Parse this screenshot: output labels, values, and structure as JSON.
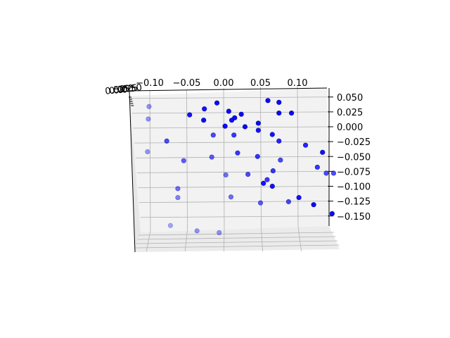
{
  "chart_data": {
    "type": "scatter",
    "projection": "3d",
    "title": "",
    "xlabel": "",
    "ylabel": "",
    "zlabel": "",
    "grid": true,
    "legend": "none",
    "marker_color": "#0000ff",
    "pane_color": "#f2f2f2",
    "grid_color": "#b0b0b0",
    "x_ticks": [
      "−0.10",
      "−0.05",
      "0.00",
      "0.05",
      "0.10"
    ],
    "x_tick_values": [
      -0.1,
      -0.05,
      0.0,
      0.05,
      0.1
    ],
    "z_ticks": [
      "0.050",
      "0.025",
      "0.000",
      "−0.025",
      "−0.050",
      "−0.075",
      "−0.100",
      "−0.125",
      "−0.150"
    ],
    "z_tick_values": [
      0.05,
      0.025,
      0.0,
      -0.025,
      -0.05,
      -0.075,
      -0.1,
      -0.125,
      -0.15
    ],
    "y_ticks_overlapping": [
      "0.50",
      "0.25",
      "0.00",
      "0.25",
      "0.50"
    ],
    "xlim": [
      -0.115,
      0.135
    ],
    "zlim": [
      -0.16,
      0.055
    ],
    "depth_range": [
      0,
      1
    ],
    "points": [
      {
        "x": -0.101,
        "z": 0.034,
        "depth": 0.8
      },
      {
        "x": -0.102,
        "z": 0.013,
        "depth": 0.8
      },
      {
        "x": -0.077,
        "z": -0.024,
        "depth": 0.4
      },
      {
        "x": -0.103,
        "z": -0.042,
        "depth": 0.8
      },
      {
        "x": -0.046,
        "z": 0.02,
        "depth": 0.1
      },
      {
        "x": -0.026,
        "z": 0.03,
        "depth": 0.1
      },
      {
        "x": -0.027,
        "z": 0.011,
        "depth": 0.05
      },
      {
        "x": -0.009,
        "z": 0.04,
        "depth": 0.05
      },
      {
        "x": 0.007,
        "z": 0.026,
        "depth": 0.05
      },
      {
        "x": 0.015,
        "z": 0.015,
        "depth": 0.05
      },
      {
        "x": 0.011,
        "z": 0.011,
        "depth": 0.05
      },
      {
        "x": 0.024,
        "z": 0.021,
        "depth": 0.05
      },
      {
        "x": 0.002,
        "z": 0.001,
        "depth": 0.05
      },
      {
        "x": 0.029,
        "z": 0.0,
        "depth": 0.05
      },
      {
        "x": 0.047,
        "z": 0.006,
        "depth": 0.05
      },
      {
        "x": 0.06,
        "z": 0.044,
        "depth": 0.05
      },
      {
        "x": 0.075,
        "z": 0.041,
        "depth": 0.05
      },
      {
        "x": 0.075,
        "z": 0.023,
        "depth": 0.05
      },
      {
        "x": 0.092,
        "z": 0.023,
        "depth": 0.05
      },
      {
        "x": 0.047,
        "z": -0.006,
        "depth": 0.1
      },
      {
        "x": 0.066,
        "z": -0.013,
        "depth": 0.1
      },
      {
        "x": 0.014,
        "z": -0.014,
        "depth": 0.3
      },
      {
        "x": -0.014,
        "z": -0.014,
        "depth": 0.4
      },
      {
        "x": 0.075,
        "z": -0.024,
        "depth": 0.2
      },
      {
        "x": 0.111,
        "z": -0.031,
        "depth": 0.2
      },
      {
        "x": 0.019,
        "z": -0.044,
        "depth": 0.3
      },
      {
        "x": 0.046,
        "z": -0.05,
        "depth": 0.3
      },
      {
        "x": -0.016,
        "z": -0.051,
        "depth": 0.5
      },
      {
        "x": -0.054,
        "z": -0.057,
        "depth": 0.5
      },
      {
        "x": 0.077,
        "z": -0.056,
        "depth": 0.4
      },
      {
        "x": 0.134,
        "z": -0.043,
        "depth": 0.1
      },
      {
        "x": 0.127,
        "z": -0.068,
        "depth": 0.3
      },
      {
        "x": 0.067,
        "z": -0.074,
        "depth": 0.3
      },
      {
        "x": 0.139,
        "z": -0.078,
        "depth": 0.4
      },
      {
        "x": 0.149,
        "z": -0.078,
        "depth": 0.4
      },
      {
        "x": 0.003,
        "z": -0.081,
        "depth": 0.6
      },
      {
        "x": 0.033,
        "z": -0.08,
        "depth": 0.4
      },
      {
        "x": 0.059,
        "z": -0.089,
        "depth": 0.3
      },
      {
        "x": 0.054,
        "z": -0.095,
        "depth": 0.1
      },
      {
        "x": 0.066,
        "z": -0.1,
        "depth": 0.1
      },
      {
        "x": -0.062,
        "z": -0.104,
        "depth": 0.6
      },
      {
        "x": -0.062,
        "z": -0.119,
        "depth": 0.7
      },
      {
        "x": 0.01,
        "z": -0.118,
        "depth": 0.6
      },
      {
        "x": 0.05,
        "z": -0.128,
        "depth": 0.5
      },
      {
        "x": 0.088,
        "z": -0.126,
        "depth": 0.4
      },
      {
        "x": 0.102,
        "z": -0.119,
        "depth": 0.1
      },
      {
        "x": 0.122,
        "z": -0.131,
        "depth": 0.05
      },
      {
        "x": 0.147,
        "z": -0.146,
        "depth": 0.05
      },
      {
        "x": -0.072,
        "z": -0.166,
        "depth": 0.9
      },
      {
        "x": -0.036,
        "z": -0.175,
        "depth": 0.8
      },
      {
        "x": -0.006,
        "z": -0.178,
        "depth": 0.8
      }
    ]
  }
}
